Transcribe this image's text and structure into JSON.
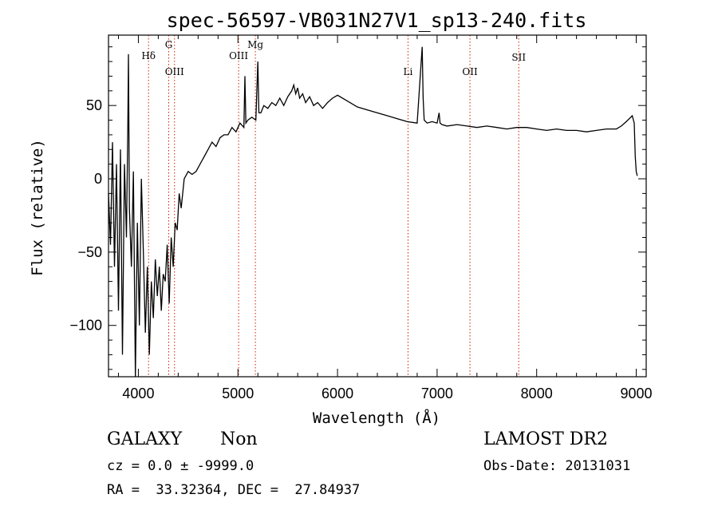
{
  "chart_data": {
    "type": "line",
    "title": "spec-56597-VB031N27V1_sp13-240.fits",
    "xlabel": "Wavelength (Å)",
    "ylabel": "Flux (relative)",
    "xlim": [
      3700,
      9100
    ],
    "ylim": [
      -135,
      98
    ],
    "x_ticks": [
      4000,
      5000,
      6000,
      7000,
      8000,
      9000
    ],
    "y_ticks": [
      -100,
      -50,
      0,
      50
    ],
    "grid": false,
    "line_color": "#000000",
    "marker_color": "#cc2200",
    "spectrum": {
      "x": [
        3700,
        3720,
        3740,
        3760,
        3780,
        3800,
        3820,
        3840,
        3860,
        3880,
        3895,
        3900,
        3910,
        3930,
        3950,
        3970,
        3990,
        4010,
        4030,
        4050,
        4070,
        4090,
        4110,
        4130,
        4150,
        4170,
        4190,
        4210,
        4230,
        4250,
        4270,
        4290,
        4310,
        4330,
        4350,
        4370,
        4390,
        4410,
        4430,
        4460,
        4500,
        4540,
        4580,
        4620,
        4660,
        4700,
        4740,
        4780,
        4820,
        4860,
        4900,
        4940,
        4980,
        5020,
        5060,
        5070,
        5080,
        5100,
        5140,
        5180,
        5200,
        5210,
        5230,
        5260,
        5300,
        5340,
        5380,
        5420,
        5460,
        5500,
        5540,
        5560,
        5580,
        5600,
        5620,
        5650,
        5680,
        5720,
        5760,
        5800,
        5850,
        5900,
        5950,
        6000,
        6100,
        6200,
        6300,
        6400,
        6500,
        6600,
        6700,
        6800,
        6850,
        6860,
        6870,
        6900,
        6950,
        7000,
        7020,
        7030,
        7050,
        7100,
        7200,
        7300,
        7400,
        7500,
        7600,
        7700,
        7800,
        7900,
        8000,
        8100,
        8200,
        8300,
        8400,
        8500,
        8600,
        8700,
        8800,
        8850,
        8900,
        8930,
        8960,
        8980,
        8990,
        9000,
        9010
      ],
      "y": [
        -10,
        -45,
        25,
        -60,
        10,
        -90,
        20,
        -120,
        10,
        -40,
        40,
        85,
        -20,
        -60,
        5,
        -135,
        -30,
        -100,
        0,
        -50,
        -105,
        -60,
        -120,
        -70,
        -95,
        -55,
        -80,
        -60,
        -90,
        -65,
        -70,
        -45,
        -85,
        -40,
        -60,
        -30,
        -35,
        -10,
        -20,
        0,
        5,
        3,
        5,
        10,
        15,
        20,
        25,
        22,
        28,
        30,
        30,
        35,
        32,
        38,
        35,
        70,
        38,
        40,
        42,
        40,
        80,
        45,
        45,
        50,
        48,
        52,
        50,
        55,
        50,
        56,
        60,
        64,
        58,
        62,
        55,
        58,
        52,
        56,
        50,
        52,
        48,
        52,
        55,
        57,
        53,
        49,
        47,
        45,
        43,
        41,
        39,
        38,
        90,
        55,
        40,
        38,
        39,
        38,
        45,
        38,
        37,
        36,
        37,
        36,
        35,
        36,
        35,
        34,
        35,
        35,
        34,
        33,
        34,
        33,
        33,
        32,
        33,
        34,
        34,
        36,
        39,
        41,
        43,
        38,
        15,
        5,
        2
      ]
    },
    "lines": [
      {
        "label": "Hδ",
        "x": 4102
      },
      {
        "label": "G",
        "x": 4305
      },
      {
        "label": "OIII",
        "x": 4363
      },
      {
        "label": "OIII",
        "x": 5007
      },
      {
        "label": "Mg",
        "x": 5175
      },
      {
        "label": "Li",
        "x": 6708
      },
      {
        "label": "OII",
        "x": 7330
      },
      {
        "label": "SII",
        "x": 7820
      }
    ]
  },
  "info": {
    "class": "GALAXY",
    "subclass": "Non",
    "survey": "LAMOST DR2",
    "cz": "cz = 0.0 ± -9999.0",
    "obs_date": "Obs-Date: 20131031",
    "coords": "RA =  33.32364, DEC =  27.84937"
  }
}
